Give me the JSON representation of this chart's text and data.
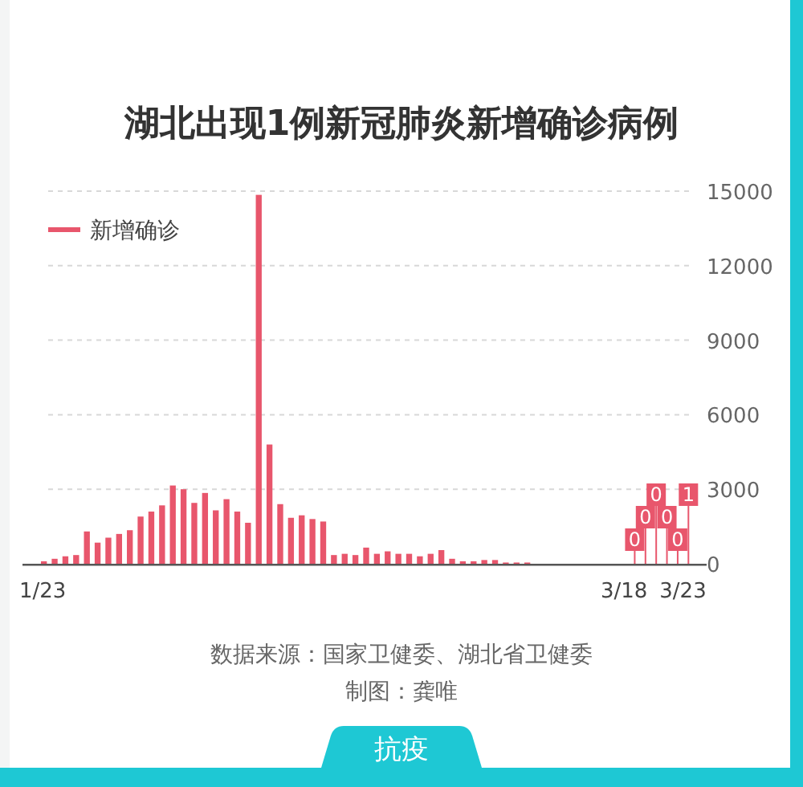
{
  "chart_data": {
    "type": "bar",
    "title": "湖北出现1例新冠肺炎新增确诊病例",
    "categories": [
      "1/23",
      null,
      null,
      null,
      null,
      null,
      null,
      null,
      null,
      null,
      null,
      null,
      null,
      null,
      null,
      null,
      null,
      null,
      null,
      null,
      null,
      null,
      null,
      null,
      null,
      null,
      null,
      null,
      null,
      null,
      null,
      null,
      null,
      null,
      null,
      null,
      null,
      null,
      null,
      null,
      null,
      null,
      null,
      null,
      null,
      null,
      null,
      null,
      null,
      null,
      null,
      null,
      null,
      null,
      null,
      "3/18",
      null,
      null,
      null,
      null,
      "3/23"
    ],
    "series": [
      {
        "name": "新增确诊",
        "color": "#e8566c",
        "values": [
          100,
          200,
          300,
          350,
          1300,
          850,
          1050,
          1200,
          1350,
          1900,
          2100,
          2350,
          3150,
          3000,
          2450,
          2850,
          2150,
          2600,
          2100,
          1650,
          14850,
          4800,
          2400,
          1850,
          1950,
          1800,
          1700,
          350,
          400,
          350,
          650,
          400,
          500,
          400,
          400,
          300,
          400,
          550,
          200,
          100,
          100,
          150,
          150,
          50,
          50,
          50,
          0,
          0,
          0,
          0,
          0,
          0,
          0,
          0,
          0,
          0,
          0,
          0,
          0,
          0,
          1
        ],
        "value_labels": [
          null,
          null,
          null,
          null,
          null,
          null,
          null,
          null,
          null,
          null,
          null,
          null,
          null,
          null,
          null,
          null,
          null,
          null,
          null,
          null,
          null,
          null,
          null,
          null,
          null,
          null,
          null,
          null,
          null,
          null,
          null,
          null,
          null,
          null,
          null,
          null,
          null,
          null,
          null,
          null,
          null,
          null,
          null,
          null,
          null,
          null,
          null,
          null,
          null,
          null,
          null,
          null,
          null,
          null,
          null,
          "0",
          "0",
          "0",
          "0",
          "0",
          "1"
        ]
      }
    ],
    "ylim": [
      0,
      15000
    ],
    "yticks": [
      0,
      3000,
      6000,
      9000,
      12000,
      15000
    ],
    "grid": "y",
    "legend": "top left",
    "annotations": [
      "数据来源：国家卫健委、湖北省卫健委",
      "制图：龚唯",
      "抗疫"
    ]
  }
}
